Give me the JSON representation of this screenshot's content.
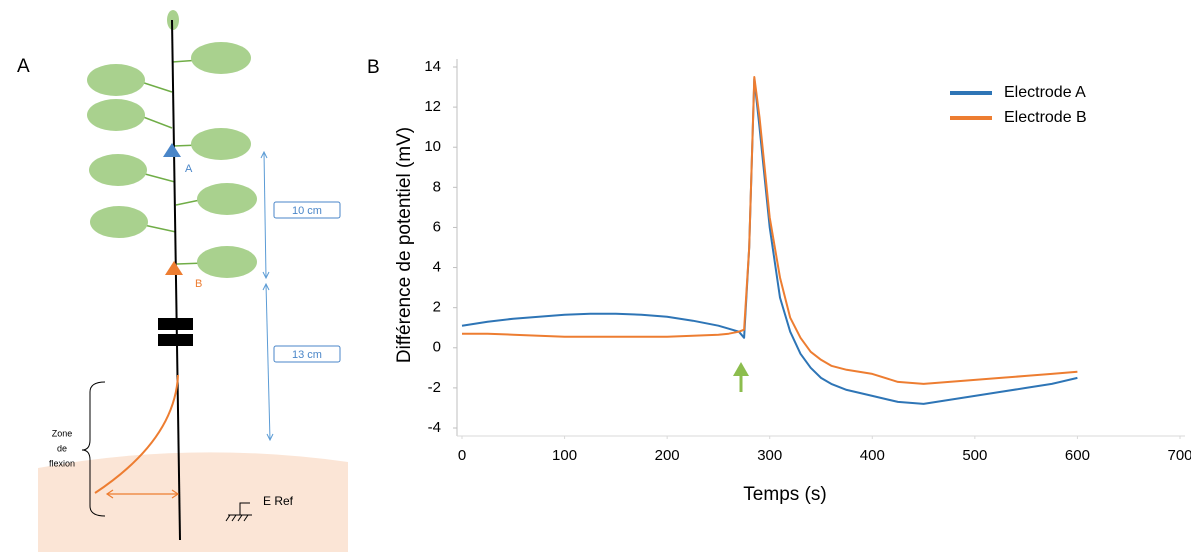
{
  "panel_labels": [
    "A",
    "B"
  ],
  "diagram": {
    "electrode_a": "A",
    "electrode_b": "B",
    "distance_top": "10 cm",
    "distance_bottom": "13 cm",
    "zone_label": [
      "Zone",
      "de",
      "flexion"
    ],
    "reference": "E Ref"
  },
  "chart_data": {
    "type": "line",
    "x": [
      0,
      25,
      50,
      75,
      100,
      125,
      150,
      175,
      200,
      225,
      250,
      260,
      270,
      275,
      280,
      285,
      290,
      300,
      310,
      320,
      330,
      340,
      350,
      360,
      375,
      400,
      425,
      450,
      475,
      500,
      525,
      550,
      575,
      600
    ],
    "series": [
      {
        "name": "Electrode A",
        "color": "#2e75b6",
        "values": [
          1.1,
          1.3,
          1.45,
          1.55,
          1.65,
          1.7,
          1.7,
          1.65,
          1.55,
          1.35,
          1.1,
          0.95,
          0.8,
          0.5,
          5,
          13.4,
          11,
          6,
          2.5,
          0.8,
          -0.3,
          -1.0,
          -1.5,
          -1.8,
          -2.1,
          -2.4,
          -2.7,
          -2.8,
          -2.6,
          -2.4,
          -2.2,
          -2.0,
          -1.8,
          -1.5
        ]
      },
      {
        "name": "Electrode B",
        "color": "#ed7d31",
        "values": [
          0.7,
          0.7,
          0.65,
          0.6,
          0.55,
          0.55,
          0.55,
          0.55,
          0.55,
          0.6,
          0.65,
          0.7,
          0.8,
          0.9,
          5,
          13.5,
          11.5,
          6.5,
          3.5,
          1.5,
          0.5,
          -0.2,
          -0.6,
          -0.9,
          -1.1,
          -1.3,
          -1.7,
          -1.8,
          -1.7,
          -1.6,
          -1.5,
          -1.4,
          -1.3,
          -1.2
        ]
      }
    ],
    "xlabel": "Temps (s)",
    "ylabel": "Différence de potentiel (mV)",
    "xlim": [
      0,
      700
    ],
    "ylim": [
      -4,
      14
    ],
    "xticks": [
      0,
      100,
      200,
      300,
      400,
      500,
      600,
      700
    ],
    "yticks": [
      -4,
      -2,
      0,
      2,
      4,
      6,
      8,
      10,
      12,
      14
    ],
    "grid": false,
    "legend": "upper right"
  }
}
